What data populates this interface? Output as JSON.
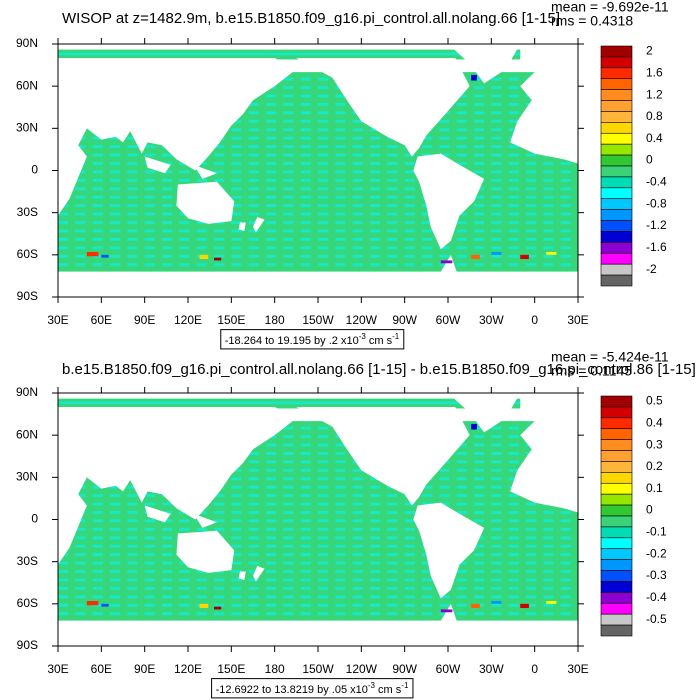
{
  "colorbar_colors": [
    "#a00000",
    "#d20000",
    "#ff2a00",
    "#ff6400",
    "#ff8c1e",
    "#ffa030",
    "#ffb43c",
    "#ffd700",
    "#ffff00",
    "#96e600",
    "#32c832",
    "#3cd278",
    "#00dcb4",
    "#00ffff",
    "#00c8ff",
    "#0096ff",
    "#0050ff",
    "#0000d2",
    "#8c00d2",
    "#ff00ff",
    "#c8c8c8",
    "#646464"
  ],
  "panels": [
    {
      "title": "WISOP at z=1482.9m, b.e15.B1850.f09_g16.pi_control.all.nolang.66 [1-15]",
      "stats": [
        "mean = -9.692e-11",
        "rms = 0.4318"
      ],
      "x_tick_labels": [
        "30E",
        "60E",
        "90E",
        "120E",
        "150E",
        "180",
        "150W",
        "120W",
        "90W",
        "60W",
        "30W",
        "0",
        "30E"
      ],
      "y_tick_labels": [
        "90N",
        "60N",
        "30N",
        "0",
        "30S",
        "60S",
        "90S"
      ],
      "contour_info": {
        "range": "-18.264 to 19.195 by .2 x10",
        "exponent": "-3",
        "unit": " cm s",
        "unit_exponent": "-1"
      },
      "colorbar_labels": [
        "2",
        "1.6",
        "1.2",
        "0.8",
        "0.4",
        "0",
        "-0.4",
        "-0.8",
        "-1.2",
        "-1.6",
        "-2"
      ]
    },
    {
      "title": "b.e15.B1850.f09_g16.pi_control.all.nolang.66 [1-15] - b.e15.B1850.f09_g16.pi_control.86 [1-15]",
      "stats": [
        "mean = -5.424e-11",
        "rms = 0.1145"
      ],
      "x_tick_labels": [
        "30E",
        "60E",
        "90E",
        "120E",
        "150E",
        "180",
        "150W",
        "120W",
        "90W",
        "60W",
        "30W",
        "0",
        "30E"
      ],
      "y_tick_labels": [
        "90N",
        "60N",
        "30N",
        "0",
        "30S",
        "60S",
        "90S"
      ],
      "contour_info": {
        "range": "-12.6922 to 13.8219 by .05 x10",
        "exponent": "-3",
        "unit": " cm s",
        "unit_exponent": "-1"
      },
      "colorbar_labels": [
        "0.5",
        "0.4",
        "0.3",
        "0.2",
        "0.1",
        "0",
        "-0.1",
        "-0.2",
        "-0.3",
        "-0.4",
        "-0.5"
      ]
    }
  ]
}
